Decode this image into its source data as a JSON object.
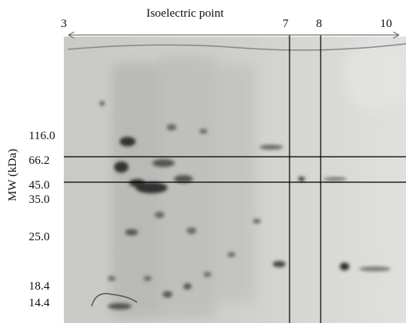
{
  "top_axis": {
    "title": "Isoelectric point",
    "labels": [
      "3",
      "7",
      "8",
      "10"
    ]
  },
  "left_axis": {
    "title": "MW (kDa)",
    "labels": [
      "116.0",
      "66.2",
      "45.0",
      "35.0",
      "25.0",
      "18.4",
      "14.4"
    ]
  }
}
